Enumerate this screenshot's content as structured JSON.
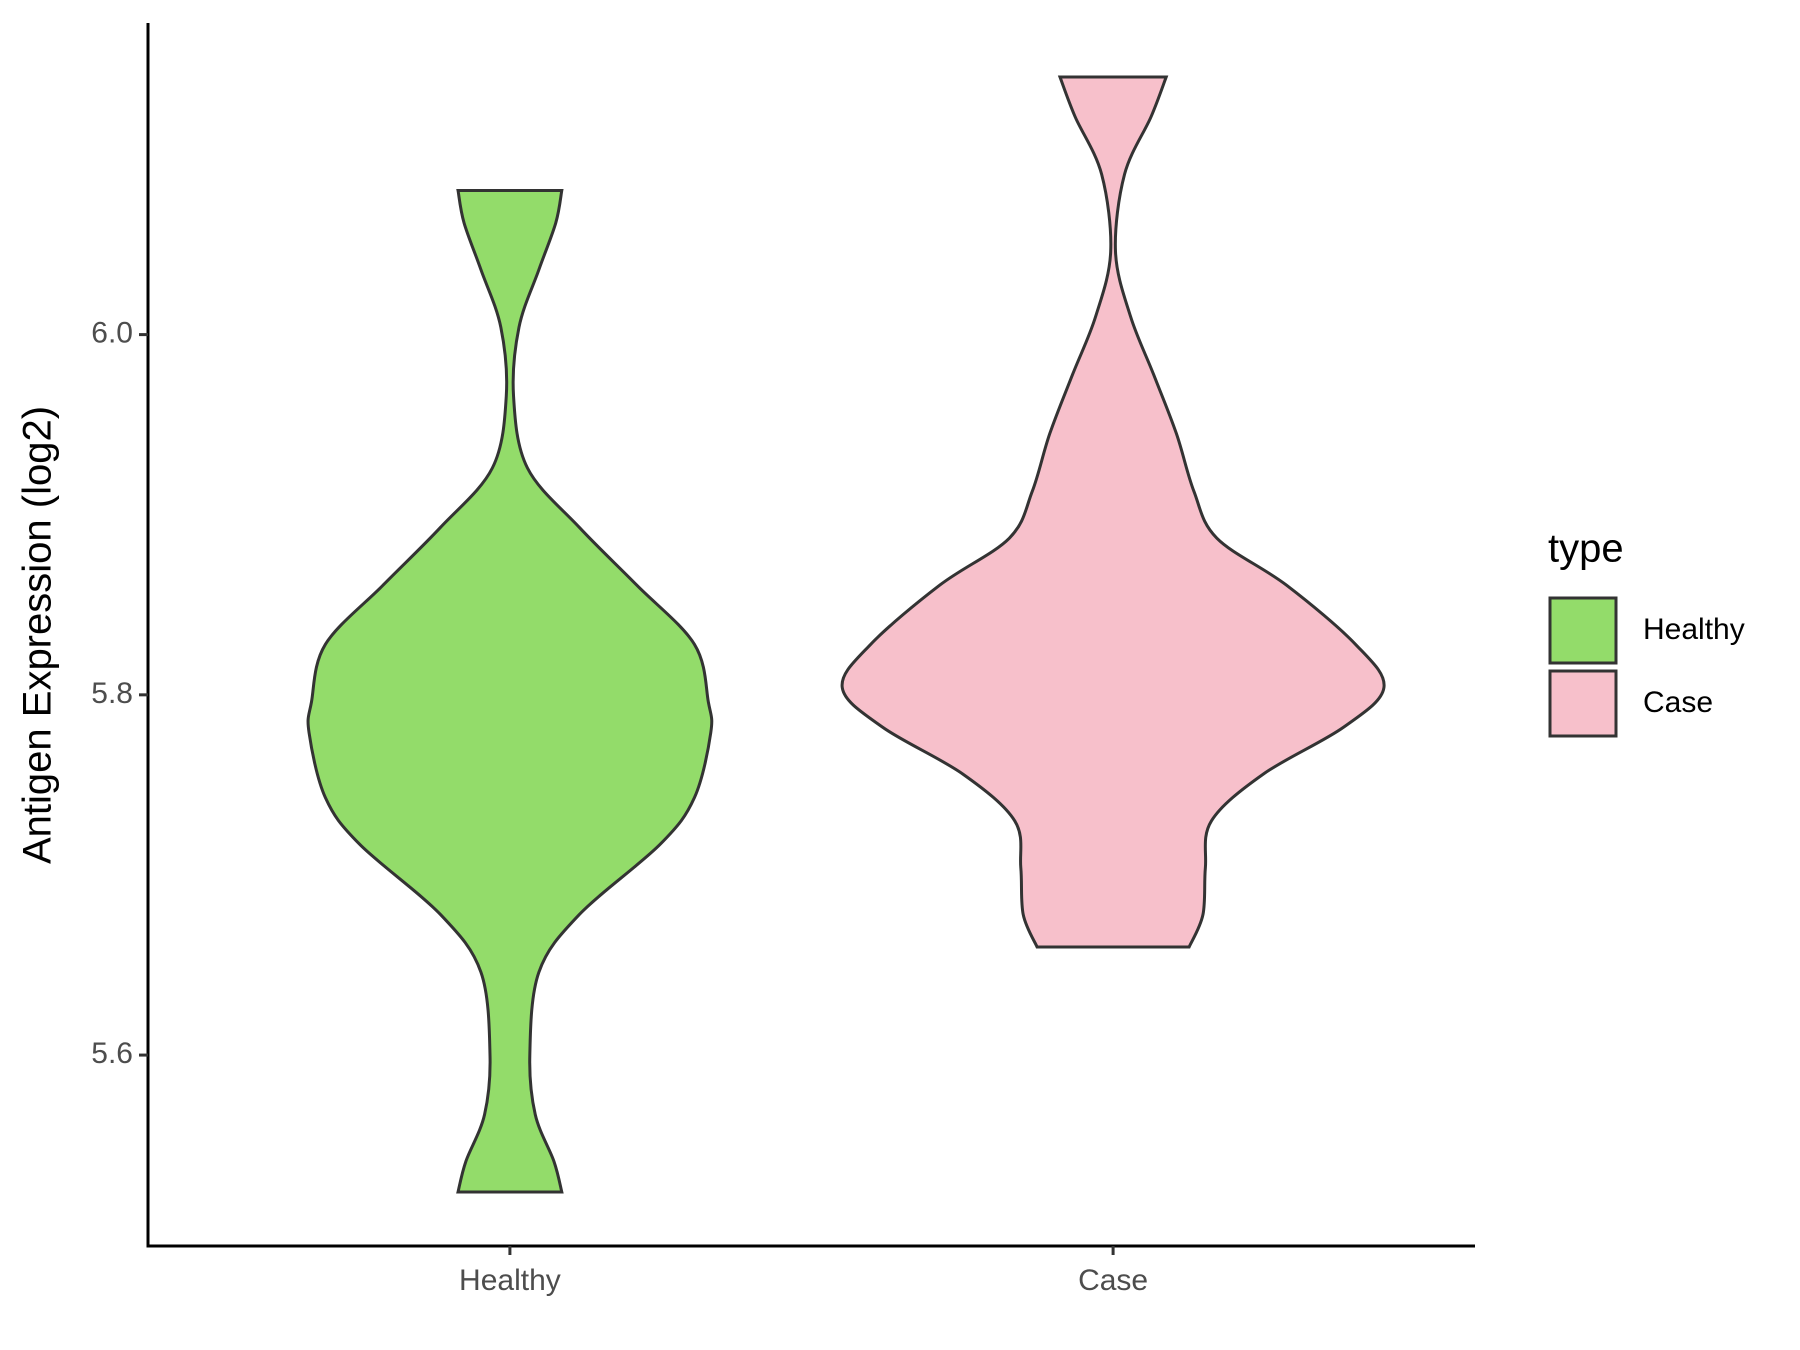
{
  "chart_data": {
    "type": "violin",
    "y_label": "Antigen Expression (log2)",
    "categories": [
      "Healthy",
      "Case"
    ],
    "legend_title": "type",
    "legend_position": "right",
    "ylim": [
      5.494,
      6.173
    ],
    "yticks": [
      5.6,
      5.8,
      {
        "value": 6,
        "label": "6.0"
      }
    ],
    "series": [
      {
        "name": "Healthy",
        "color": "#93dc6a",
        "values": [
          6.08,
          6.062,
          6.036,
          6.004,
          5.966,
          5.926,
          5.893,
          5.861,
          5.828,
          5.796,
          5.779,
          5.743,
          5.717,
          5.678,
          5.646,
          5.6,
          5.567,
          5.541,
          5.524
        ],
        "widths": [
          0.086,
          0.076,
          0.048,
          0.015,
          0.006,
          0.029,
          0.115,
          0.21,
          0.306,
          0.329,
          0.333,
          0.306,
          0.249,
          0.115,
          0.048,
          0.033,
          0.042,
          0.073,
          0.086
        ]
      },
      {
        "name": "Case",
        "color": "#f7c0cb",
        "values": [
          6.143,
          6.121,
          6.089,
          6.046,
          6.01,
          5.978,
          5.945,
          5.913,
          5.887,
          5.861,
          5.828,
          5.804,
          5.782,
          5.756,
          5.73,
          5.704,
          5.678,
          5.66
        ],
        "widths": [
          0.088,
          0.063,
          0.019,
          0.004,
          0.029,
          0.067,
          0.105,
          0.134,
          0.172,
          0.287,
          0.402,
          0.449,
          0.382,
          0.249,
          0.163,
          0.153,
          0.149,
          0.126
        ]
      }
    ]
  }
}
